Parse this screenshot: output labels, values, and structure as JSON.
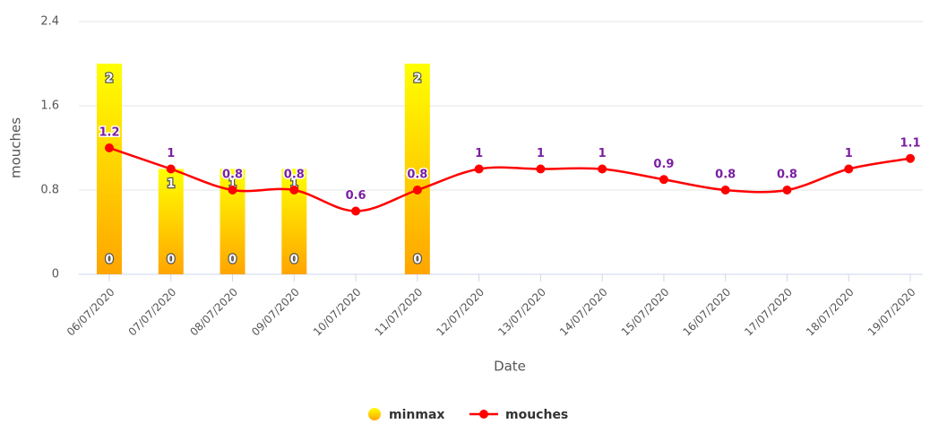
{
  "chart_data": {
    "type": "combo",
    "xlabel": "Date",
    "ylabel": "mouches",
    "categories": [
      "06/07/2020",
      "07/07/2020",
      "08/07/2020",
      "09/07/2020",
      "10/07/2020",
      "11/07/2020",
      "12/07/2020",
      "13/07/2020",
      "14/07/2020",
      "15/07/2020",
      "16/07/2020",
      "17/07/2020",
      "18/07/2020",
      "19/07/2020"
    ],
    "series": [
      {
        "name": "minmax",
        "type": "columnrange",
        "gradient": [
          "#ffff00",
          "#ffa500"
        ],
        "low": [
          0,
          0,
          0,
          0,
          null,
          0,
          null,
          null,
          null,
          null,
          null,
          null,
          null,
          null
        ],
        "high": [
          2,
          1,
          1,
          1,
          null,
          2,
          null,
          null,
          null,
          null,
          null,
          null,
          null,
          null
        ]
      },
      {
        "name": "mouches",
        "type": "spline",
        "color": "#ff0000",
        "label_color": "#7b1fa2",
        "values": [
          1.2,
          1,
          0.8,
          0.8,
          0.6,
          0.8,
          1,
          1,
          1,
          0.9,
          0.8,
          0.8,
          1,
          1.1
        ]
      }
    ],
    "ylim": [
      0,
      2.4
    ],
    "yticks": [
      0,
      0.8,
      1.6,
      2.4
    ],
    "grid": true
  }
}
